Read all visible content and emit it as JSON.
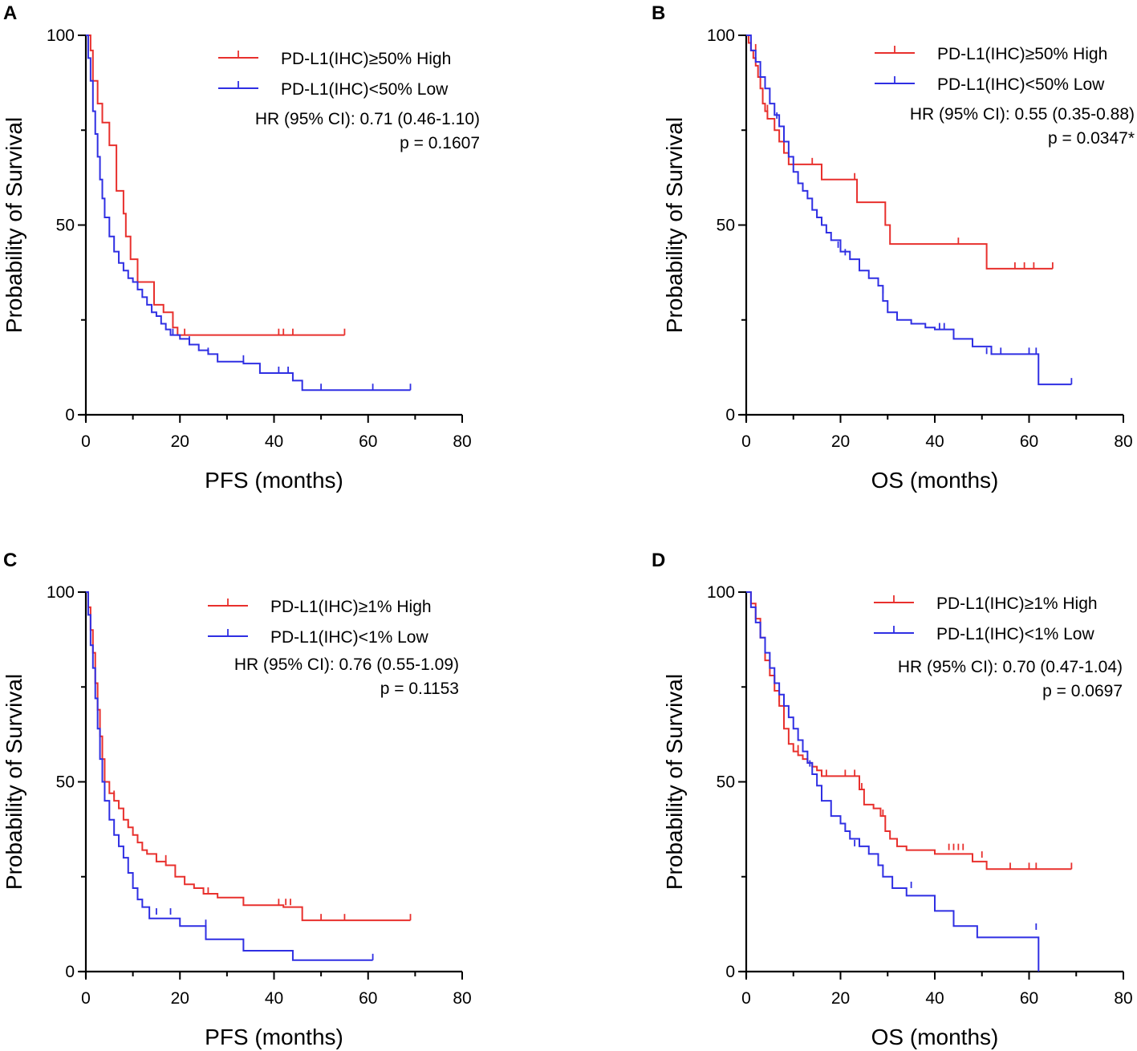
{
  "colors": {
    "high": "#e8302d",
    "low": "#2f2fe3",
    "axis": "#000000"
  },
  "chart_data": [
    {
      "type": "line",
      "panel": "A",
      "title": "",
      "xlabel": "PFS (months)",
      "ylabel": "Probability of Survival",
      "xlim": [
        0,
        80
      ],
      "ylim": [
        0,
        100
      ],
      "xticks": [
        "0",
        "20",
        "40",
        "60",
        "80"
      ],
      "yticks": [
        "0",
        "50",
        "100"
      ],
      "legend": {
        "position": "top-right",
        "entries": [
          "PD-L1(IHC)≥50% High",
          "PD-L1(IHC)<50% Low"
        ]
      },
      "annotations": [
        "HR (95% CI): 0.71 (0.46-1.10)",
        "p = 0.1607"
      ],
      "series": [
        {
          "name": "PD-L1(IHC)≥50% High",
          "color_key": "high",
          "x": [
            0,
            1,
            1.5,
            2.5,
            3.5,
            5,
            6.5,
            8,
            8.5,
            9.5,
            11,
            14.5,
            16.5,
            18.5,
            19.5,
            55
          ],
          "y": [
            100,
            96,
            88,
            82,
            77,
            71,
            59,
            53,
            47,
            41,
            35,
            29,
            27,
            23,
            21,
            21
          ],
          "censors": [
            [
              21,
              21
            ],
            [
              41,
              21
            ],
            [
              42,
              21
            ],
            [
              44,
              21
            ],
            [
              55,
              21
            ]
          ]
        },
        {
          "name": "PD-L1(IHC)<50% Low",
          "color_key": "low",
          "x": [
            0,
            0.5,
            1,
            1.5,
            2,
            2.5,
            3,
            3.5,
            4,
            5,
            6,
            7,
            8,
            9,
            10,
            11,
            12,
            13,
            14,
            15,
            16,
            17,
            18,
            19,
            20,
            22,
            24,
            26,
            28,
            31,
            33.5,
            37,
            40,
            44,
            46,
            69
          ],
          "y": [
            100,
            94,
            88,
            80,
            74,
            68,
            62,
            57,
            52,
            47,
            43,
            40,
            38,
            36,
            35,
            33,
            31,
            29,
            27,
            26,
            24,
            22.5,
            21,
            21,
            20,
            18.5,
            17,
            16,
            14,
            14,
            13.5,
            11,
            11,
            9,
            6.5,
            6.5
          ],
          "censors": [
            [
              18.5,
              21
            ],
            [
              22,
              19
            ],
            [
              26,
              16
            ],
            [
              33.5,
              14
            ],
            [
              41,
              11
            ],
            [
              43,
              11
            ],
            [
              50,
              6.5
            ],
            [
              61,
              6.5
            ],
            [
              69,
              6.5
            ]
          ]
        }
      ]
    },
    {
      "type": "line",
      "panel": "B",
      "title": "",
      "xlabel": "OS (months)",
      "ylabel": "Probability of Survival",
      "xlim": [
        0,
        80
      ],
      "ylim": [
        0,
        100
      ],
      "xticks": [
        "0",
        "20",
        "40",
        "60",
        "80"
      ],
      "yticks": [
        "0",
        "50",
        "100"
      ],
      "legend": {
        "position": "top-right",
        "entries": [
          "PD-L1(IHC)≥50% High",
          "PD-L1(IHC)<50% Low"
        ]
      },
      "annotations": [
        "HR (95% CI): 0.55 (0.35-0.88)",
        "p = 0.0347*"
      ],
      "series": [
        {
          "name": "PD-L1(IHC)≥50% High",
          "color_key": "high",
          "x": [
            0,
            0.5,
            1,
            1.5,
            2,
            2.5,
            3,
            3.5,
            4,
            4.5,
            5,
            6,
            7,
            8,
            9,
            16,
            23.5,
            29.5,
            30.5,
            51,
            65
          ],
          "y": [
            100,
            98,
            96,
            94,
            92,
            89,
            86,
            82,
            80,
            78,
            78,
            75,
            72,
            69,
            66,
            62,
            56,
            50,
            45,
            38.5,
            38.5
          ],
          "censors": [
            [
              1,
              98
            ],
            [
              2,
              96
            ],
            [
              4.5,
              80
            ],
            [
              14,
              66
            ],
            [
              23,
              62
            ],
            [
              45,
              45
            ],
            [
              57,
              38.5
            ],
            [
              59,
              38.5
            ],
            [
              61,
              38.5
            ],
            [
              65,
              38.5
            ]
          ]
        },
        {
          "name": "PD-L1(IHC)<50% Low",
          "color_key": "low",
          "x": [
            0,
            1,
            2,
            3,
            4,
            5,
            6,
            7,
            8,
            9,
            10,
            11,
            12,
            13,
            14,
            15,
            16,
            17,
            18,
            20,
            22,
            24,
            26,
            28,
            29,
            30,
            32,
            35,
            38,
            40,
            44,
            48,
            52,
            56,
            62,
            69
          ],
          "y": [
            100,
            96,
            93,
            89,
            86,
            82,
            79,
            76,
            72,
            68,
            64,
            61,
            59,
            57,
            54,
            52,
            50,
            48,
            46,
            43,
            41,
            38,
            36,
            34,
            30,
            27,
            25,
            24,
            23,
            22.5,
            20,
            18,
            16,
            16,
            8,
            8
          ],
          "censors": [
            [
              6.5,
              78
            ],
            [
              11,
              62
            ],
            [
              15,
              52
            ],
            [
              19.5,
              44
            ],
            [
              21,
              42
            ],
            [
              29,
              32
            ],
            [
              41,
              22.5
            ],
            [
              42,
              22.5
            ],
            [
              44,
              20
            ],
            [
              51,
              16
            ],
            [
              54,
              16
            ],
            [
              60,
              16
            ],
            [
              61.5,
              16
            ],
            [
              69,
              8
            ]
          ]
        }
      ]
    },
    {
      "type": "line",
      "panel": "C",
      "title": "",
      "xlabel": "PFS (months)",
      "ylabel": "Probability of Survival",
      "xlim": [
        0,
        80
      ],
      "ylim": [
        0,
        100
      ],
      "xticks": [
        "0",
        "20",
        "40",
        "60",
        "80"
      ],
      "yticks": [
        "0",
        "50",
        "100"
      ],
      "legend": {
        "position": "top-right",
        "entries": [
          "PD-L1(IHC)≥1% High",
          "PD-L1(IHC)<1% Low"
        ]
      },
      "annotations": [
        "HR (95% CI): 0.76 (0.55-1.09)",
        "p = 0.1153"
      ],
      "series": [
        {
          "name": "PD-L1(IHC)≥1% High",
          "color_key": "high",
          "x": [
            0,
            0.5,
            1,
            1.5,
            2,
            2.5,
            3,
            3.5,
            4,
            5,
            6,
            7,
            8,
            9,
            10,
            11,
            12,
            13,
            15,
            17,
            19,
            21,
            23,
            25,
            28,
            33.5,
            38,
            42,
            46,
            69
          ],
          "y": [
            100,
            96,
            90,
            84,
            76,
            69,
            62,
            56,
            50,
            47,
            45,
            43,
            40,
            38,
            36,
            34,
            32,
            31,
            29,
            28,
            25,
            23,
            22,
            20.5,
            19.5,
            17.5,
            17.5,
            17,
            13.5,
            13.5
          ],
          "censors": [
            [
              6,
              46
            ],
            [
              9,
              38
            ],
            [
              17,
              29
            ],
            [
              26,
              20.5
            ],
            [
              41,
              17.5
            ],
            [
              42.5,
              17.5
            ],
            [
              43.5,
              17.5
            ],
            [
              50,
              13.5
            ],
            [
              55,
              13.5
            ],
            [
              69,
              13.5
            ]
          ]
        },
        {
          "name": "PD-L1(IHC)<1% Low",
          "color_key": "low",
          "x": [
            0,
            0.5,
            1,
            1.5,
            2,
            2.5,
            3,
            3.5,
            4,
            5,
            6,
            7,
            8,
            9,
            10,
            11,
            12,
            13.5,
            20,
            25.5,
            33.5,
            44,
            61
          ],
          "y": [
            100,
            94,
            86,
            80,
            72,
            64,
            56,
            50,
            45,
            40,
            36,
            33,
            30,
            26,
            22,
            19,
            17,
            14,
            12,
            8.5,
            5.5,
            3,
            3
          ],
          "censors": [
            [
              15,
              15
            ],
            [
              18,
              15
            ],
            [
              25.5,
              12
            ],
            [
              61,
              3
            ]
          ]
        }
      ]
    },
    {
      "type": "line",
      "panel": "D",
      "title": "",
      "xlabel": "OS (months)",
      "ylabel": "Probability of Survival",
      "xlim": [
        0,
        80
      ],
      "ylim": [
        0,
        100
      ],
      "xticks": [
        "0",
        "20",
        "40",
        "60",
        "80"
      ],
      "yticks": [
        "0",
        "50",
        "100"
      ],
      "legend": {
        "position": "top-right",
        "entries": [
          "PD-L1(IHC)≥1% High",
          "PD-L1(IHC)<1% Low"
        ]
      },
      "annotations": [
        "HR (95% CI): 0.70 (0.47-1.04)",
        "p = 0.0697"
      ],
      "series": [
        {
          "name": "PD-L1(IHC)≥1% High",
          "color_key": "high",
          "x": [
            0,
            1,
            2,
            3,
            4,
            5,
            6,
            7,
            8,
            9,
            10,
            11,
            12,
            13,
            14,
            15,
            16,
            18,
            24,
            25,
            27,
            28.5,
            29.5,
            30.5,
            32,
            34,
            40,
            48,
            51,
            69
          ],
          "y": [
            100,
            97,
            93,
            88,
            82,
            78,
            74,
            70,
            64,
            60,
            58,
            57,
            56,
            55,
            54,
            53,
            51.5,
            51.5,
            48,
            44,
            43,
            41,
            37,
            35,
            33,
            32,
            31,
            29,
            27,
            27
          ],
          "censors": [
            [
              3,
              90
            ],
            [
              7,
              71
            ],
            [
              11,
              58
            ],
            [
              17,
              51.5
            ],
            [
              21,
              51.5
            ],
            [
              23,
              51.5
            ],
            [
              24.5,
              48
            ],
            [
              29,
              41
            ],
            [
              43,
              32
            ],
            [
              44,
              32
            ],
            [
              45,
              32
            ],
            [
              46,
              32
            ],
            [
              50,
              30
            ],
            [
              56,
              27
            ],
            [
              60,
              27
            ],
            [
              61.5,
              27
            ],
            [
              69,
              27
            ]
          ]
        },
        {
          "name": "PD-L1(IHC)<1% Low",
          "color_key": "low",
          "x": [
            0,
            1,
            2,
            3,
            4,
            5,
            6,
            7,
            8,
            9,
            10,
            11,
            12,
            13,
            14,
            15,
            16,
            18,
            20,
            21,
            22,
            24,
            26,
            28,
            29,
            31,
            34,
            40,
            44,
            49,
            62,
            62.01
          ],
          "y": [
            100,
            96,
            92,
            88,
            84,
            80,
            76,
            73,
            70,
            67,
            64,
            61,
            58,
            55,
            52,
            49,
            45,
            41,
            39,
            37,
            35,
            33,
            31,
            28,
            25,
            22,
            20,
            16,
            12,
            9,
            9,
            0
          ],
          "censors": [
            [
              13.5,
              54
            ],
            [
              23,
              33
            ],
            [
              35,
              22
            ],
            [
              61.5,
              11
            ]
          ]
        }
      ]
    }
  ]
}
